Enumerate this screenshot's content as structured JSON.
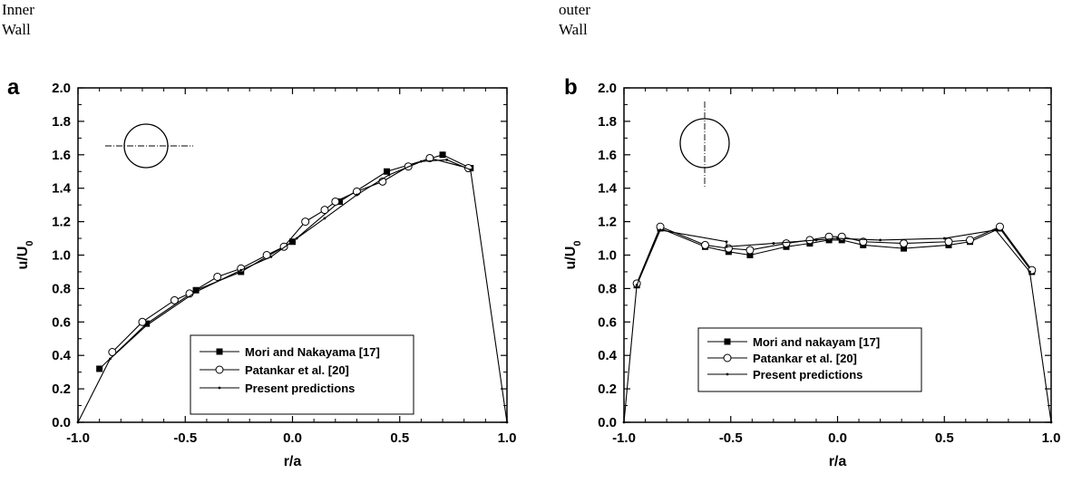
{
  "wall_labels": {
    "inner_1": "Inner",
    "inner_2": "Wall",
    "outer_1": "outer",
    "outer_2": "Wall"
  },
  "chart_data": [
    {
      "panel": "a",
      "type": "line",
      "xlabel": "r/a",
      "ylabel_main": "u/U",
      "ylabel_sub": "0",
      "xlim": [
        -1.0,
        1.0
      ],
      "ylim": [
        0.0,
        2.0
      ],
      "xticks": [
        "-1.0",
        "-0.5",
        "0.0",
        "0.5",
        "1.0"
      ],
      "yticks": [
        "0.0",
        "0.2",
        "0.4",
        "0.6",
        "0.8",
        "1.0",
        "1.2",
        "1.4",
        "1.6",
        "1.8",
        "2.0"
      ],
      "inset": "horizontal",
      "series": [
        {
          "name": "Mori and Nakayama [17]",
          "marker": "square",
          "x": [
            -0.9,
            -0.68,
            -0.45,
            -0.24,
            0.0,
            0.22,
            0.44,
            0.7,
            0.83
          ],
          "y": [
            0.32,
            0.59,
            0.79,
            0.9,
            1.08,
            1.32,
            1.5,
            1.6,
            1.52
          ]
        },
        {
          "name": "Patankar et al. [20]",
          "marker": "circle",
          "x": [
            -0.84,
            -0.7,
            -0.55,
            -0.48,
            -0.35,
            -0.24,
            -0.12,
            -0.04,
            0.06,
            0.15,
            0.2,
            0.3,
            0.42,
            0.54,
            0.64,
            0.82
          ],
          "y": [
            0.42,
            0.6,
            0.73,
            0.77,
            0.87,
            0.92,
            1.0,
            1.05,
            1.2,
            1.27,
            1.32,
            1.38,
            1.44,
            1.53,
            1.58,
            1.52
          ]
        },
        {
          "name": "Present predictions",
          "marker": "dot",
          "x": [
            -1.0,
            -0.85,
            -0.68,
            -0.45,
            -0.24,
            -0.1,
            0.02,
            0.15,
            0.3,
            0.45,
            0.6,
            0.72,
            0.83,
            1.0
          ],
          "y": [
            0.0,
            0.38,
            0.58,
            0.78,
            0.91,
            0.99,
            1.1,
            1.22,
            1.36,
            1.48,
            1.56,
            1.57,
            1.51,
            0.0
          ]
        }
      ]
    },
    {
      "panel": "b",
      "type": "line",
      "xlabel": "r/a",
      "ylabel_main": "u/U",
      "ylabel_sub": "0",
      "xlim": [
        -1.0,
        1.0
      ],
      "ylim": [
        0.0,
        2.0
      ],
      "xticks": [
        "-1.0",
        "-0.5",
        "0.0",
        "0.5",
        "1.0"
      ],
      "yticks": [
        "0.0",
        "0.2",
        "0.4",
        "0.6",
        "0.8",
        "1.0",
        "1.2",
        "1.4",
        "1.6",
        "1.8",
        "2.0"
      ],
      "inset": "vertical",
      "series": [
        {
          "name": "Mori and nakayam [17]",
          "marker": "square",
          "x": [
            -0.94,
            -0.83,
            -0.62,
            -0.51,
            -0.41,
            -0.24,
            -0.13,
            -0.04,
            0.02,
            0.12,
            0.31,
            0.52,
            0.62,
            0.76,
            0.91
          ],
          "y": [
            0.82,
            1.16,
            1.05,
            1.02,
            1.0,
            1.05,
            1.07,
            1.09,
            1.09,
            1.06,
            1.04,
            1.06,
            1.08,
            1.16,
            0.9
          ]
        },
        {
          "name": "Patankar et al. [20]",
          "marker": "circle",
          "x": [
            -0.94,
            -0.83,
            -0.62,
            -0.51,
            -0.41,
            -0.24,
            -0.13,
            -0.04,
            0.02,
            0.12,
            0.31,
            0.52,
            0.62,
            0.76,
            0.91
          ],
          "y": [
            0.83,
            1.17,
            1.06,
            1.04,
            1.03,
            1.07,
            1.09,
            1.11,
            1.11,
            1.08,
            1.07,
            1.08,
            1.09,
            1.17,
            0.91
          ]
        },
        {
          "name": "Present predictions",
          "marker": "dot",
          "x": [
            -1.0,
            -0.94,
            -0.83,
            -0.52,
            -0.52,
            -0.3,
            -0.1,
            0.0,
            0.2,
            0.5,
            0.74,
            0.9,
            1.0
          ],
          "y": [
            0.0,
            0.82,
            1.15,
            1.08,
            1.05,
            1.07,
            1.09,
            1.1,
            1.09,
            1.1,
            1.15,
            0.9,
            0.0
          ]
        }
      ]
    }
  ]
}
